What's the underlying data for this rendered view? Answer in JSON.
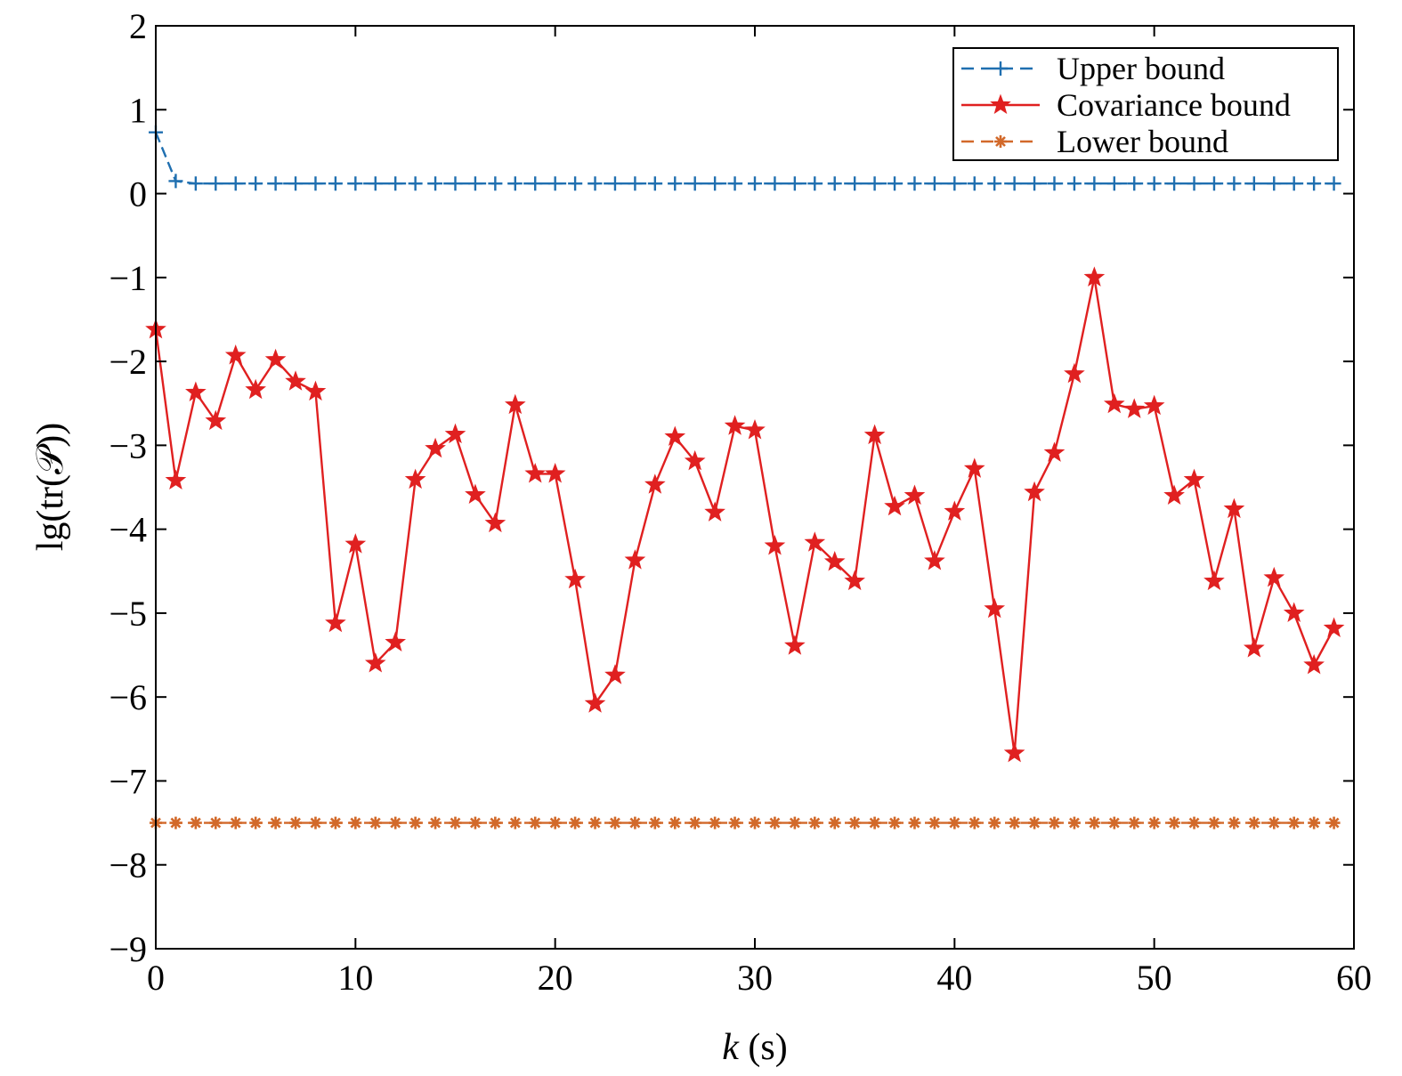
{
  "chart_data": {
    "type": "line",
    "title": "",
    "xlabel": "k (s)",
    "ylabel": "lg(tr(𝒫))",
    "xlim": [
      0,
      60
    ],
    "ylim": [
      -9,
      2
    ],
    "xticks": [
      0,
      10,
      20,
      30,
      40,
      50,
      60
    ],
    "yticks": [
      2,
      1,
      0,
      -1,
      -2,
      -3,
      -4,
      -5,
      -6,
      -7,
      -8,
      -9
    ],
    "xtick_labels": [
      "0",
      "10",
      "20",
      "30",
      "40",
      "50",
      "60"
    ],
    "ytick_labels": [
      "2",
      "1",
      "0",
      "−1",
      "−2",
      "−3",
      "−4",
      "−5",
      "−6",
      "−7",
      "−8",
      "−9"
    ],
    "grid": false,
    "legend_position": "top-right",
    "x": [
      0,
      1,
      2,
      3,
      4,
      5,
      6,
      7,
      8,
      9,
      10,
      11,
      12,
      13,
      14,
      15,
      16,
      17,
      18,
      19,
      20,
      21,
      22,
      23,
      24,
      25,
      26,
      27,
      28,
      29,
      30,
      31,
      32,
      33,
      34,
      35,
      36,
      37,
      38,
      39,
      40,
      41,
      42,
      43,
      44,
      45,
      46,
      47,
      48,
      49,
      50,
      51,
      52,
      53,
      54,
      55,
      56,
      57,
      58,
      59
    ],
    "series": [
      {
        "name": "Upper bound",
        "color": "#1f6fb0",
        "line_style": "dashed",
        "marker": "plus",
        "values": [
          0.73,
          0.15,
          0.12,
          0.12,
          0.12,
          0.12,
          0.12,
          0.12,
          0.12,
          0.12,
          0.12,
          0.12,
          0.12,
          0.12,
          0.12,
          0.12,
          0.12,
          0.12,
          0.12,
          0.12,
          0.12,
          0.12,
          0.12,
          0.12,
          0.12,
          0.12,
          0.12,
          0.12,
          0.12,
          0.12,
          0.12,
          0.12,
          0.12,
          0.12,
          0.12,
          0.12,
          0.12,
          0.12,
          0.12,
          0.12,
          0.12,
          0.12,
          0.12,
          0.12,
          0.12,
          0.12,
          0.12,
          0.12,
          0.12,
          0.12,
          0.12,
          0.12,
          0.12,
          0.12,
          0.12,
          0.12,
          0.12,
          0.12,
          0.12,
          0.12
        ]
      },
      {
        "name": "Covariance bound",
        "color": "#e02020",
        "line_style": "solid",
        "marker": "star",
        "values": [
          -1.62,
          -3.42,
          -2.37,
          -2.71,
          -1.93,
          -2.34,
          -1.98,
          -2.24,
          -2.36,
          -5.12,
          -4.18,
          -5.6,
          -5.35,
          -3.41,
          -3.04,
          -2.87,
          -3.59,
          -3.93,
          -2.52,
          -3.34,
          -3.34,
          -4.6,
          -6.08,
          -5.74,
          -4.37,
          -3.47,
          -2.9,
          -3.19,
          -3.8,
          -2.77,
          -2.82,
          -4.2,
          -5.39,
          -4.16,
          -4.39,
          -4.62,
          -2.88,
          -3.73,
          -3.6,
          -4.38,
          -3.79,
          -3.28,
          -4.95,
          -6.67,
          -3.56,
          -3.09,
          -2.15,
          -1.0,
          -2.51,
          -2.57,
          -2.53,
          -3.6,
          -3.41,
          -4.62,
          -3.76,
          -5.42,
          -4.58,
          -5.0,
          -5.62,
          -5.18
        ]
      },
      {
        "name": "Lower bound",
        "color": "#d2692a",
        "line_style": "dashed",
        "marker": "asterisk",
        "values": [
          -7.5,
          -7.5,
          -7.5,
          -7.5,
          -7.5,
          -7.5,
          -7.5,
          -7.5,
          -7.5,
          -7.5,
          -7.5,
          -7.5,
          -7.5,
          -7.5,
          -7.5,
          -7.5,
          -7.5,
          -7.5,
          -7.5,
          -7.5,
          -7.5,
          -7.5,
          -7.5,
          -7.5,
          -7.5,
          -7.5,
          -7.5,
          -7.5,
          -7.5,
          -7.5,
          -7.5,
          -7.5,
          -7.5,
          -7.5,
          -7.5,
          -7.5,
          -7.5,
          -7.5,
          -7.5,
          -7.5,
          -7.5,
          -7.5,
          -7.5,
          -7.5,
          -7.5,
          -7.5,
          -7.5,
          -7.5,
          -7.5,
          -7.5,
          -7.5,
          -7.5,
          -7.5,
          -7.5,
          -7.5,
          -7.5,
          -7.5,
          -7.5,
          -7.5,
          -7.5
        ]
      }
    ]
  }
}
